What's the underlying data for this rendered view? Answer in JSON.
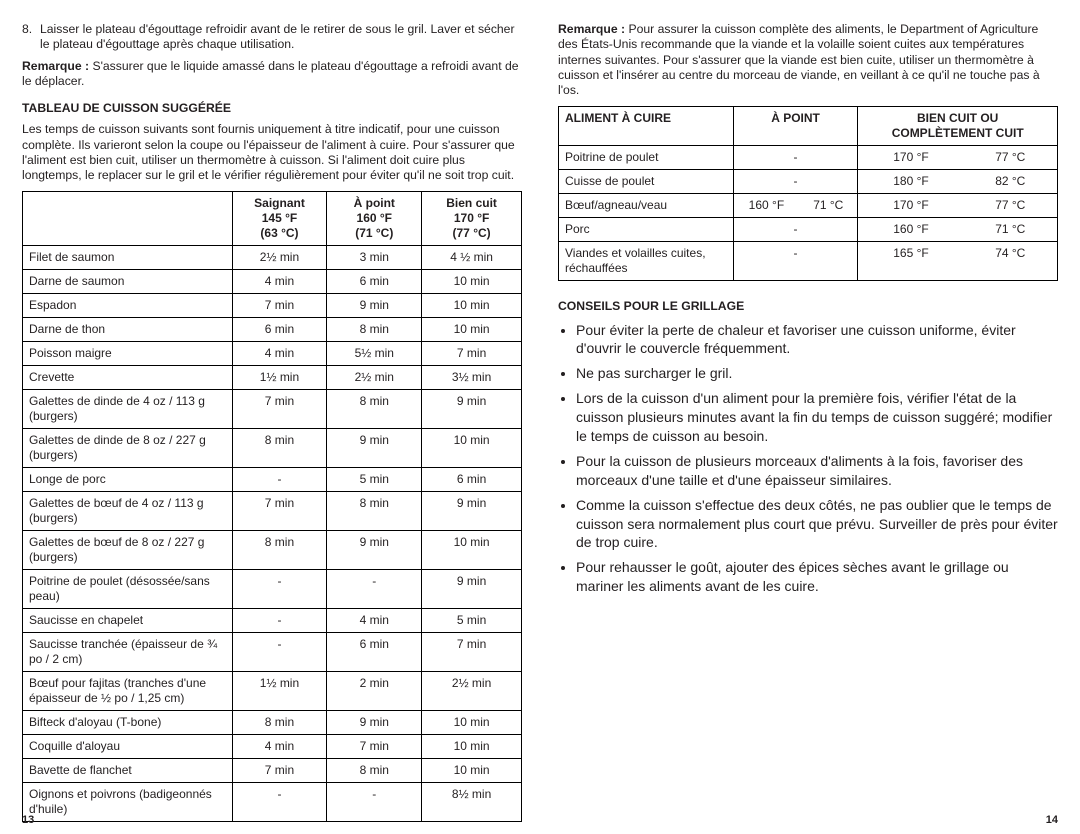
{
  "left": {
    "step8_num": "8.",
    "step8": "Laisser le plateau d'égouttage refroidir avant de le retirer de sous le gril. Laver et sécher le plateau d'égouttage après chaque utilisation.",
    "remarque_label": "Remarque :",
    "remarque": " S'assurer que le liquide amassé dans le plateau d'égouttage a refroidi avant de le déplacer.",
    "section_title": "TABLEAU DE CUISSON SUGGÉRÉE",
    "intro": "Les temps de cuisson suivants sont fournis uniquement à titre indicatif, pour une cuisson complète. Ils varieront selon la coupe ou l'épaisseur de l'aliment à cuire. Pour s'assurer que l'aliment est bien cuit, utiliser un thermomètre à cuisson. Si l'aliment doit cuire plus longtemps, le replacer sur le gril et le vérifier régulièrement pour éviter qu'il ne soit trop cuit.",
    "table": {
      "headers": {
        "h1": "",
        "h2_l1": "Saignant",
        "h2_l2": "145 °F",
        "h2_l3": "(63 °C)",
        "h3_l1": "À point",
        "h3_l2": "160 °F",
        "h3_l3": "(71 °C)",
        "h4_l1": "Bien cuit",
        "h4_l2": "170 °F",
        "h4_l3": "(77 °C)"
      },
      "rows": [
        {
          "name": "Filet de saumon",
          "c2": "2½ min",
          "c3": "3 min",
          "c4": "4 ½ min"
        },
        {
          "name": "Darne de saumon",
          "c2": "4 min",
          "c3": "6 min",
          "c4": "10 min"
        },
        {
          "name": "Espadon",
          "c2": "7 min",
          "c3": "9 min",
          "c4": "10 min"
        },
        {
          "name": "Darne de thon",
          "c2": "6 min",
          "c3": "8 min",
          "c4": "10 min"
        },
        {
          "name": "Poisson maigre",
          "c2": "4 min",
          "c3": "5½ min",
          "c4": "7 min"
        },
        {
          "name": "Crevette",
          "c2": "1½ min",
          "c3": "2½ min",
          "c4": "3½ min"
        },
        {
          "name": "Galettes de dinde de 4 oz / 113 g (burgers)",
          "c2": "7 min",
          "c3": "8 min",
          "c4": "9 min"
        },
        {
          "name": "Galettes de dinde de 8 oz / 227 g (burgers)",
          "c2": "8 min",
          "c3": "9 min",
          "c4": "10 min"
        },
        {
          "name": "Longe de porc",
          "c2": "-",
          "c3": "5 min",
          "c4": "6 min"
        },
        {
          "name": "Galettes de bœuf de 4 oz / 113 g (burgers)",
          "c2": "7 min",
          "c3": "8 min",
          "c4": "9 min"
        },
        {
          "name": "Galettes de bœuf de 8 oz / 227 g (burgers)",
          "c2": "8 min",
          "c3": "9 min",
          "c4": "10 min"
        },
        {
          "name": "Poitrine de poulet (désossée/sans peau)",
          "c2": "-",
          "c3": "-",
          "c4": "9 min"
        },
        {
          "name": "Saucisse en chapelet",
          "c2": "-",
          "c3": "4 min",
          "c4": "5 min"
        },
        {
          "name": "Saucisse tranchée (épaisseur de ¾ po / 2 cm)",
          "c2": "-",
          "c3": "6 min",
          "c4": "7 min"
        },
        {
          "name": "Bœuf pour fajitas (tranches d'une épaisseur de ½ po / 1,25 cm)",
          "c2": "1½ min",
          "c3": "2 min",
          "c4": "2½ min"
        },
        {
          "name": "Bifteck d'aloyau (T-bone)",
          "c2": "8 min",
          "c3": "9 min",
          "c4": "10 min"
        },
        {
          "name": "Coquille d'aloyau",
          "c2": "4 min",
          "c3": "7 min",
          "c4": "10 min"
        },
        {
          "name": "Bavette de flanchet",
          "c2": "7 min",
          "c3": "8 min",
          "c4": "10 min"
        },
        {
          "name": "Oignons et poivrons (badigeonnés d'huile)",
          "c2": "-",
          "c3": "-",
          "c4": "8½ min"
        }
      ]
    },
    "page_num": "13"
  },
  "right": {
    "remarque_label": "Remarque :",
    "remarque": " Pour assurer la cuisson complète des aliments, le Department of Agriculture des États-Unis recommande que la viande et la volaille soient cuites aux températures internes suivantes. Pour s'assurer que la viande est bien cuite, utiliser un thermomètre à cuisson et l'insérer au centre du morceau de viande, en veillant à ce qu'il ne touche pas à l'os.",
    "table": {
      "headers": {
        "food": "ALIMENT À CUIRE",
        "apoint": "À POINT",
        "bien_l1": "BIEN CUIT OU",
        "bien_l2": "COMPLÈTEMENT CUIT"
      },
      "rows": [
        {
          "food": "Poitrine de poulet",
          "apoint": "-",
          "bien_f": "170 °F",
          "bien_c": "77 °C"
        },
        {
          "food": "Cuisse de poulet",
          "apoint": "-",
          "bien_f": "180 °F",
          "bien_c": "82 °C"
        },
        {
          "food": "Bœuf/agneau/veau",
          "apoint_f": "160 °F",
          "apoint_c": "71 °C",
          "bien_f": "170 °F",
          "bien_c": "77 °C"
        },
        {
          "food": "Porc",
          "apoint": "-",
          "bien_f": "160 °F",
          "bien_c": "71 °C"
        },
        {
          "food": "Viandes et volailles cuites, réchauffées",
          "apoint": "-",
          "bien_f": "165 °F",
          "bien_c": "74 °C"
        }
      ]
    },
    "tips_title": "CONSEILS POUR LE GRILLAGE",
    "tips": [
      "Pour éviter la perte de chaleur et favoriser une cuisson uniforme, éviter d'ouvrir le couvercle fréquemment.",
      "Ne pas surcharger le gril.",
      "Lors de la cuisson d'un aliment pour la première fois, vérifier l'état de la cuisson plusieurs minutes avant la fin du temps de cuisson suggéré; modifier le temps de cuisson au besoin.",
      "Pour la cuisson de plusieurs morceaux d'aliments à la fois, favoriser des morceaux d'une taille et d'une épaisseur similaires.",
      "Comme la cuisson s'effectue des deux côtés, ne pas oublier que le temps de cuisson sera normalement plus court que prévu. Surveiller de près pour éviter de trop cuire.",
      "Pour rehausser le goût, ajouter des épices sèches avant le grillage ou mariner les aliments avant de les cuire."
    ],
    "page_num": "14"
  }
}
